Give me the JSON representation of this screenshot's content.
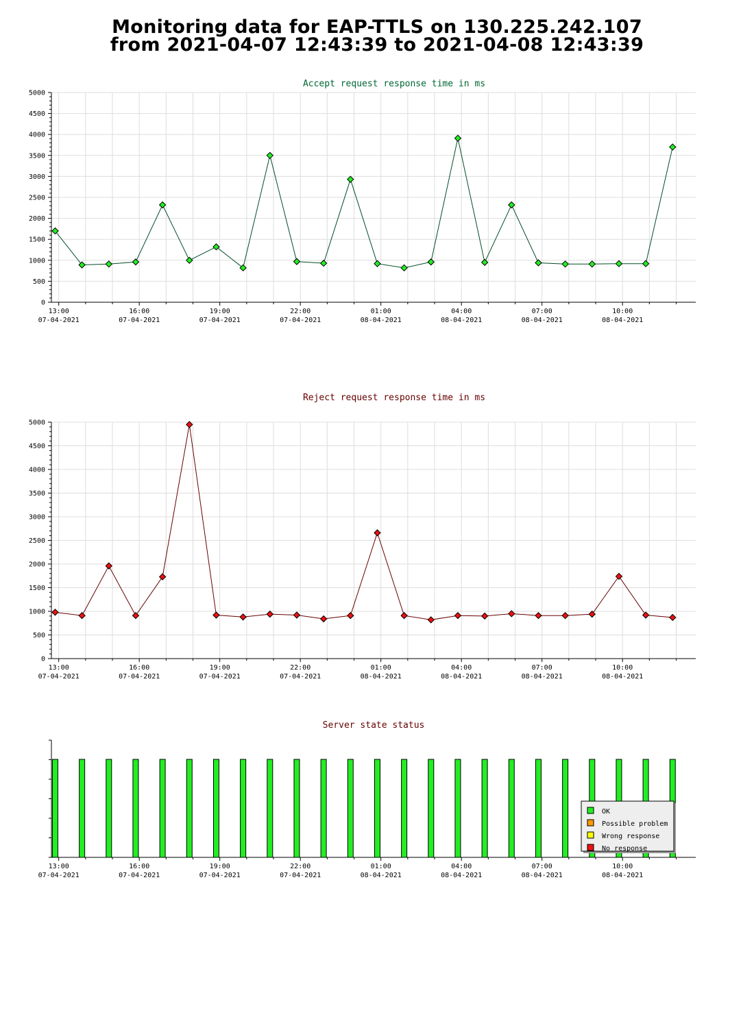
{
  "page": {
    "title_line1": "Monitoring data for EAP-TTLS on 130.225.242.107",
    "title_line2": "from 2021-04-07 12:43:39 to 2021-04-08 12:43:39"
  },
  "x_ticks": [
    {
      "time": "13:00",
      "date": "07-04-2021"
    },
    {
      "time": "16:00",
      "date": "07-04-2021"
    },
    {
      "time": "19:00",
      "date": "07-04-2021"
    },
    {
      "time": "22:00",
      "date": "07-04-2021"
    },
    {
      "time": "01:00",
      "date": "08-04-2021"
    },
    {
      "time": "04:00",
      "date": "08-04-2021"
    },
    {
      "time": "07:00",
      "date": "08-04-2021"
    },
    {
      "time": "10:00",
      "date": "08-04-2021"
    }
  ],
  "colors": {
    "accept_title": "#006633",
    "reject_title": "#660000",
    "status_title": "#660000",
    "accept_line": "#004d26",
    "accept_marker": "#22ee22",
    "reject_line": "#660000",
    "reject_marker": "#ee1111",
    "grid": "#dddddd",
    "ok": "#22ee22",
    "possible_problem": "#ff9900",
    "wrong_response": "#ffff00",
    "no_response": "#ee1111"
  },
  "chart_data": [
    {
      "id": "accept",
      "type": "line",
      "title": "Accept request response time in ms",
      "ylim": [
        0,
        5000
      ],
      "ytick_step": 500,
      "grid": true,
      "x": [
        "2021-04-07 12:52",
        "2021-04-07 13:52",
        "2021-04-07 14:52",
        "2021-04-07 15:52",
        "2021-04-07 16:52",
        "2021-04-07 17:52",
        "2021-04-07 18:52",
        "2021-04-07 19:52",
        "2021-04-07 20:52",
        "2021-04-07 21:52",
        "2021-04-07 22:52",
        "2021-04-07 23:52",
        "2021-04-08 00:52",
        "2021-04-08 01:52",
        "2021-04-08 02:52",
        "2021-04-08 03:52",
        "2021-04-08 04:52",
        "2021-04-08 05:52",
        "2021-04-08 06:52",
        "2021-04-08 07:52",
        "2021-04-08 08:52",
        "2021-04-08 09:52",
        "2021-04-08 10:52",
        "2021-04-08 11:52"
      ],
      "values": [
        1700,
        890,
        910,
        960,
        2320,
        1000,
        1320,
        820,
        3500,
        970,
        930,
        2930,
        920,
        820,
        960,
        3910,
        950,
        2320,
        940,
        910,
        910,
        920,
        920,
        3700
      ]
    },
    {
      "id": "reject",
      "type": "line",
      "title": "Reject request response time in ms",
      "ylim": [
        0,
        5000
      ],
      "ytick_step": 500,
      "grid": true,
      "x": [
        "2021-04-07 12:52",
        "2021-04-07 13:52",
        "2021-04-07 14:52",
        "2021-04-07 15:52",
        "2021-04-07 16:52",
        "2021-04-07 17:52",
        "2021-04-07 18:52",
        "2021-04-07 19:52",
        "2021-04-07 20:52",
        "2021-04-07 21:52",
        "2021-04-07 22:52",
        "2021-04-07 23:52",
        "2021-04-08 00:52",
        "2021-04-08 01:52",
        "2021-04-08 02:52",
        "2021-04-08 03:52",
        "2021-04-08 04:52",
        "2021-04-08 05:52",
        "2021-04-08 06:52",
        "2021-04-08 07:52",
        "2021-04-08 08:52",
        "2021-04-08 09:52",
        "2021-04-08 10:52",
        "2021-04-08 11:52"
      ],
      "values": [
        980,
        910,
        1960,
        910,
        1730,
        4950,
        920,
        880,
        940,
        920,
        840,
        910,
        2660,
        910,
        820,
        910,
        900,
        950,
        910,
        910,
        940,
        1740,
        920,
        870
      ]
    },
    {
      "id": "status",
      "type": "bar",
      "title": "Server state status",
      "grid": false,
      "x": [
        "2021-04-07 12:52",
        "2021-04-07 13:52",
        "2021-04-07 14:52",
        "2021-04-07 15:52",
        "2021-04-07 16:52",
        "2021-04-07 17:52",
        "2021-04-07 18:52",
        "2021-04-07 19:52",
        "2021-04-07 20:52",
        "2021-04-07 21:52",
        "2021-04-07 22:52",
        "2021-04-07 23:52",
        "2021-04-08 00:52",
        "2021-04-08 01:52",
        "2021-04-08 02:52",
        "2021-04-08 03:52",
        "2021-04-08 04:52",
        "2021-04-08 05:52",
        "2021-04-08 06:52",
        "2021-04-08 07:52",
        "2021-04-08 08:52",
        "2021-04-08 09:52",
        "2021-04-08 10:52",
        "2021-04-08 11:52"
      ],
      "states": [
        "OK",
        "OK",
        "OK",
        "OK",
        "OK",
        "OK",
        "OK",
        "OK",
        "OK",
        "OK",
        "OK",
        "OK",
        "OK",
        "OK",
        "OK",
        "OK",
        "OK",
        "OK",
        "OK",
        "OK",
        "OK",
        "OK",
        "OK",
        "OK"
      ],
      "legend_position": "bottom-right",
      "legend": [
        {
          "label": "OK",
          "color_key": "ok"
        },
        {
          "label": "Possible problem",
          "color_key": "possible_problem"
        },
        {
          "label": "Wrong response",
          "color_key": "wrong_response"
        },
        {
          "label": "No response",
          "color_key": "no_response"
        }
      ]
    }
  ]
}
